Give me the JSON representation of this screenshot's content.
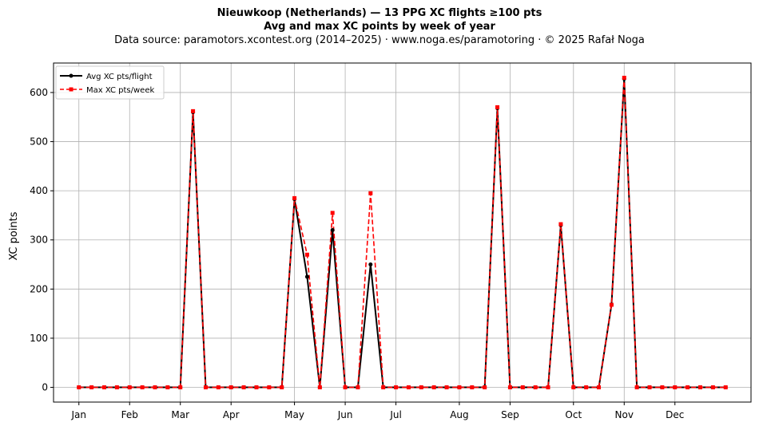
{
  "title": "Nieuwkoop (Netherlands)  —  13 PPG XC flights ≥100 pts",
  "subtitle": "Avg and max XC points by week of year",
  "source": "Data source: paramotors.xcontest.org (2014–2025)  ·  www.noga.es/paramotoring  ·  © 2025 Rafał Noga",
  "chart_data": {
    "type": "line",
    "ylabel": "XC points",
    "xlabel": "",
    "ylim": [
      -30,
      660
    ],
    "xlim": [
      -1,
      54
    ],
    "yticks": [
      0,
      100,
      200,
      300,
      400,
      500,
      600
    ],
    "xticks": [
      {
        "label": "Jan",
        "week": 1
      },
      {
        "label": "Feb",
        "week": 5
      },
      {
        "label": "Mar",
        "week": 9
      },
      {
        "label": "Apr",
        "week": 13
      },
      {
        "label": "May",
        "week": 18
      },
      {
        "label": "Jun",
        "week": 22
      },
      {
        "label": "Jul",
        "week": 26
      },
      {
        "label": "Aug",
        "week": 31
      },
      {
        "label": "Sep",
        "week": 35
      },
      {
        "label": "Oct",
        "week": 40
      },
      {
        "label": "Nov",
        "week": 44
      },
      {
        "label": "Dec",
        "week": 48
      }
    ],
    "grid": true,
    "legend_position": "top-left",
    "x": [
      1,
      2,
      3,
      4,
      5,
      6,
      7,
      8,
      9,
      10,
      11,
      12,
      13,
      14,
      15,
      16,
      17,
      18,
      19,
      20,
      21,
      22,
      23,
      24,
      25,
      26,
      27,
      28,
      29,
      30,
      31,
      32,
      33,
      34,
      35,
      36,
      37,
      38,
      39,
      40,
      41,
      42,
      43,
      44,
      45,
      46,
      47,
      48,
      49,
      50,
      51,
      52
    ],
    "series": [
      {
        "name": "Avg XC pts/flight",
        "color": "#000000",
        "style": "solid-circle",
        "values": [
          0,
          0,
          0,
          0,
          0,
          0,
          0,
          0,
          0,
          560,
          0,
          0,
          0,
          0,
          0,
          0,
          0,
          383,
          225,
          0,
          320,
          0,
          0,
          250,
          0,
          0,
          0,
          0,
          0,
          0,
          0,
          0,
          0,
          568,
          0,
          0,
          0,
          0,
          330,
          0,
          0,
          0,
          168,
          628,
          0,
          0,
          0,
          0,
          0,
          0,
          0,
          0
        ]
      },
      {
        "name": "Max XC pts/week",
        "color": "#ff0000",
        "style": "dashed-square",
        "values": [
          0,
          0,
          0,
          0,
          0,
          0,
          0,
          0,
          0,
          562,
          0,
          0,
          0,
          0,
          0,
          0,
          0,
          385,
          270,
          0,
          355,
          0,
          0,
          395,
          0,
          0,
          0,
          0,
          0,
          0,
          0,
          0,
          0,
          570,
          0,
          0,
          0,
          0,
          332,
          0,
          0,
          0,
          168,
          630,
          0,
          0,
          0,
          0,
          0,
          0,
          0,
          0
        ]
      }
    ]
  }
}
